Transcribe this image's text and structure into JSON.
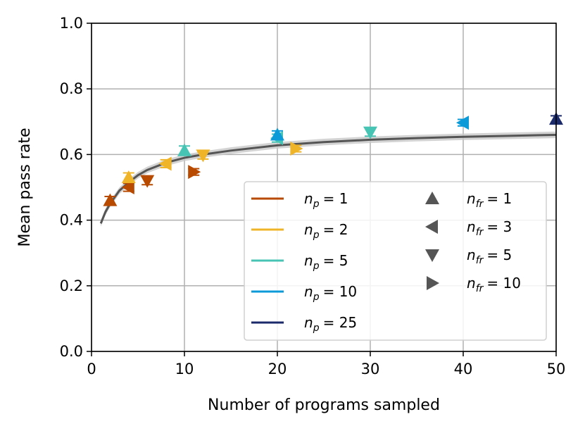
{
  "chart_data": {
    "type": "scatter",
    "xlabel": "Number of programs sampled",
    "ylabel": "Mean pass rate",
    "xlim": [
      0,
      50
    ],
    "ylim": [
      0.0,
      1.0
    ],
    "xticks": [
      "0",
      "10",
      "20",
      "30",
      "40",
      "50"
    ],
    "yticks": [
      "0.0",
      "0.2",
      "0.4",
      "0.6",
      "0.8",
      "1.0"
    ],
    "grid": true,
    "legend_position": "lower-right",
    "colors": {
      "np1": "#b84a00",
      "np2": "#f0b429",
      "np5": "#48c4b4",
      "np10": "#0c9ad8",
      "np25": "#1b2a6b",
      "shape_legend": "#555555",
      "fit_curve": "#555555",
      "fit_band": "#c8c8c8"
    },
    "legend_colors": [
      {
        "label_base": "n",
        "sub": "p",
        "value": "= 1",
        "color_key": "np1"
      },
      {
        "label_base": "n",
        "sub": "p",
        "value": "= 2",
        "color_key": "np2"
      },
      {
        "label_base": "n",
        "sub": "p",
        "value": "= 5",
        "color_key": "np5"
      },
      {
        "label_base": "n",
        "sub": "p",
        "value": "= 10",
        "color_key": "np10"
      },
      {
        "label_base": "n",
        "sub": "p",
        "value": "= 25",
        "color_key": "np25"
      }
    ],
    "legend_markers": [
      {
        "label_base": "n",
        "sub": "fr",
        "value": "= 1",
        "marker": "up"
      },
      {
        "label_base": "n",
        "sub": "fr",
        "value": "= 3",
        "marker": "left"
      },
      {
        "label_base": "n",
        "sub": "fr",
        "value": "= 5",
        "marker": "down"
      },
      {
        "label_base": "n",
        "sub": "fr",
        "value": "= 10",
        "marker": "right"
      }
    ],
    "fit_curve": {
      "x": [
        1,
        1.5,
        2,
        3,
        4,
        5,
        6,
        8,
        10,
        12,
        15,
        20,
        25,
        30,
        35,
        40,
        45,
        50
      ],
      "y": [
        0.39,
        0.425,
        0.45,
        0.49,
        0.515,
        0.537,
        0.553,
        0.575,
        0.59,
        0.6,
        0.612,
        0.628,
        0.638,
        0.645,
        0.65,
        0.654,
        0.657,
        0.66
      ],
      "band": 0.01
    },
    "points": [
      {
        "x": 2,
        "y": 0.46,
        "np": "np1",
        "marker": "up",
        "err": 0.012
      },
      {
        "x": 4,
        "y": 0.5,
        "np": "np1",
        "marker": "left",
        "err": 0.012
      },
      {
        "x": 6,
        "y": 0.52,
        "np": "np1",
        "marker": "down",
        "err": 0.012
      },
      {
        "x": 11,
        "y": 0.547,
        "np": "np1",
        "marker": "right",
        "err": 0.01
      },
      {
        "x": 4,
        "y": 0.53,
        "np": "np2",
        "marker": "up",
        "err": 0.014
      },
      {
        "x": 8,
        "y": 0.572,
        "np": "np2",
        "marker": "left",
        "err": 0.012
      },
      {
        "x": 12,
        "y": 0.598,
        "np": "np2",
        "marker": "down",
        "err": 0.012
      },
      {
        "x": 22,
        "y": 0.618,
        "np": "np2",
        "marker": "right",
        "err": 0.01
      },
      {
        "x": 10,
        "y": 0.612,
        "np": "np5",
        "marker": "up",
        "err": 0.014
      },
      {
        "x": 20,
        "y": 0.65,
        "np": "np5",
        "marker": "left",
        "err": 0.012
      },
      {
        "x": 30,
        "y": 0.668,
        "np": "np5",
        "marker": "down",
        "err": 0.012
      },
      {
        "x": 20,
        "y": 0.66,
        "np": "np10",
        "marker": "up",
        "err": 0.012
      },
      {
        "x": 40,
        "y": 0.697,
        "np": "np10",
        "marker": "left",
        "err": 0.01
      },
      {
        "x": 50,
        "y": 0.708,
        "np": "np25",
        "marker": "up",
        "err": 0.01
      }
    ]
  }
}
